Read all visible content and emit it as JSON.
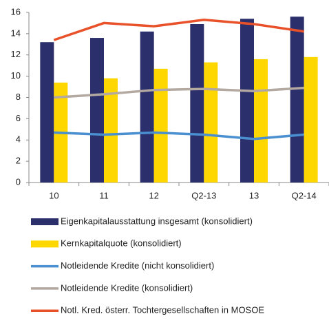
{
  "chart_data": {
    "type": "bar_line",
    "categories": [
      "10",
      "11",
      "12",
      "Q2-13",
      "13",
      "Q2-14"
    ],
    "series": [
      {
        "name": "Eigenkapitalausstattung insgesamt (konsolidiert)",
        "kind": "bar",
        "color": "#2b2f6b",
        "values": [
          13.2,
          13.6,
          14.2,
          14.9,
          15.4,
          15.6
        ]
      },
      {
        "name": "Kernkapitalquote (konsolidiert)",
        "kind": "bar",
        "color": "#ffd700",
        "values": [
          9.4,
          9.8,
          10.7,
          11.3,
          11.6,
          11.8
        ]
      },
      {
        "name": "Notleidende Kredite (nicht konsolidiert)",
        "kind": "line",
        "color": "#4a8fd0",
        "values": [
          4.7,
          4.5,
          4.7,
          4.5,
          4.1,
          4.5
        ]
      },
      {
        "name": "Notleidende Kredite (konsolidiert)",
        "kind": "line",
        "color": "#b3a9a0",
        "values": [
          8.0,
          8.3,
          8.7,
          8.8,
          8.6,
          8.9
        ]
      },
      {
        "name": "Notl. Kred. österr. Tochtergesellschaften in MOSOE",
        "kind": "line",
        "color": "#e8512a",
        "values": [
          13.4,
          15.0,
          14.7,
          15.3,
          14.9,
          14.2
        ]
      }
    ],
    "ylim": [
      0,
      16
    ],
    "yticks": [
      0,
      2,
      4,
      6,
      8,
      10,
      12,
      14,
      16
    ],
    "grid": false
  }
}
